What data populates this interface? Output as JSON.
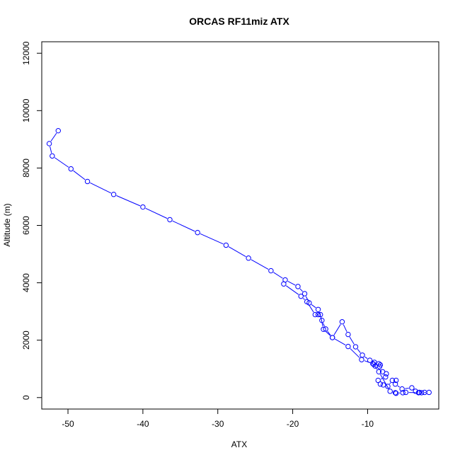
{
  "chart_data": {
    "type": "line",
    "title": "ORCAS RF11miz ATX",
    "xlabel": "ATX",
    "ylabel": "Altitude (m)",
    "xlim": [
      -53.5,
      -0.5
    ],
    "ylim": [
      -400,
      12400
    ],
    "xticks": [
      -50,
      -40,
      -30,
      -20,
      -10
    ],
    "yticks": [
      0,
      2000,
      4000,
      6000,
      8000,
      10000,
      12000
    ],
    "series": [
      {
        "color": "#0000ff",
        "marker": "open-circle",
        "points": [
          [
            -51.3,
            9300
          ],
          [
            -52.5,
            8850
          ],
          [
            -52.1,
            8420
          ],
          [
            -49.6,
            7970
          ],
          [
            -47.4,
            7530
          ],
          [
            -43.9,
            7080
          ],
          [
            -40.0,
            6640
          ],
          [
            -36.4,
            6200
          ],
          [
            -32.7,
            5750
          ],
          [
            -28.9,
            5310
          ],
          [
            -25.9,
            4860
          ],
          [
            -22.9,
            4420
          ],
          [
            -21.0,
            4100
          ],
          [
            -19.3,
            3870
          ],
          [
            -18.4,
            3620
          ],
          [
            -17.8,
            3300
          ],
          [
            -16.6,
            3070
          ],
          [
            -16.1,
            2690
          ],
          [
            -15.6,
            2390
          ],
          [
            -14.7,
            2090
          ],
          [
            -13.4,
            2640
          ],
          [
            -12.6,
            2200
          ],
          [
            -11.6,
            1770
          ],
          [
            -10.7,
            1480
          ],
          [
            -9.7,
            1300
          ],
          [
            -9.1,
            1230
          ],
          [
            -8.5,
            1180
          ],
          [
            -9.2,
            1160
          ],
          [
            -8.3,
            1140
          ],
          [
            -9.0,
            1100
          ],
          [
            -8.4,
            1080
          ],
          [
            -8.0,
            900
          ],
          [
            -7.5,
            830
          ],
          [
            -7.6,
            720
          ],
          [
            -8.6,
            600
          ],
          [
            -8.3,
            470
          ],
          [
            -7.9,
            440
          ],
          [
            -7.3,
            390
          ],
          [
            -6.7,
            600
          ],
          [
            -6.2,
            600
          ],
          [
            -6.3,
            470
          ],
          [
            -5.4,
            300
          ],
          [
            -4.1,
            340
          ],
          [
            -3.6,
            220
          ],
          [
            -3.1,
            180
          ],
          [
            -2.4,
            180
          ],
          [
            -1.8,
            180
          ],
          [
            -2.8,
            170
          ],
          [
            -3.2,
            170
          ],
          [
            -4.9,
            180
          ],
          [
            -5.3,
            170
          ],
          [
            -6.2,
            150
          ],
          [
            -6.3,
            170
          ],
          [
            -7.0,
            220
          ],
          [
            -8.5,
            900
          ],
          [
            -9.3,
            1180
          ],
          [
            -10.8,
            1320
          ],
          [
            -12.6,
            1780
          ],
          [
            -14.7,
            2090
          ],
          [
            -15.9,
            2380
          ],
          [
            -16.3,
            2890
          ],
          [
            -16.6,
            2890
          ],
          [
            -17.0,
            2890
          ],
          [
            -18.1,
            3340
          ],
          [
            -18.9,
            3530
          ],
          [
            -21.2,
            3960
          ]
        ]
      }
    ]
  }
}
